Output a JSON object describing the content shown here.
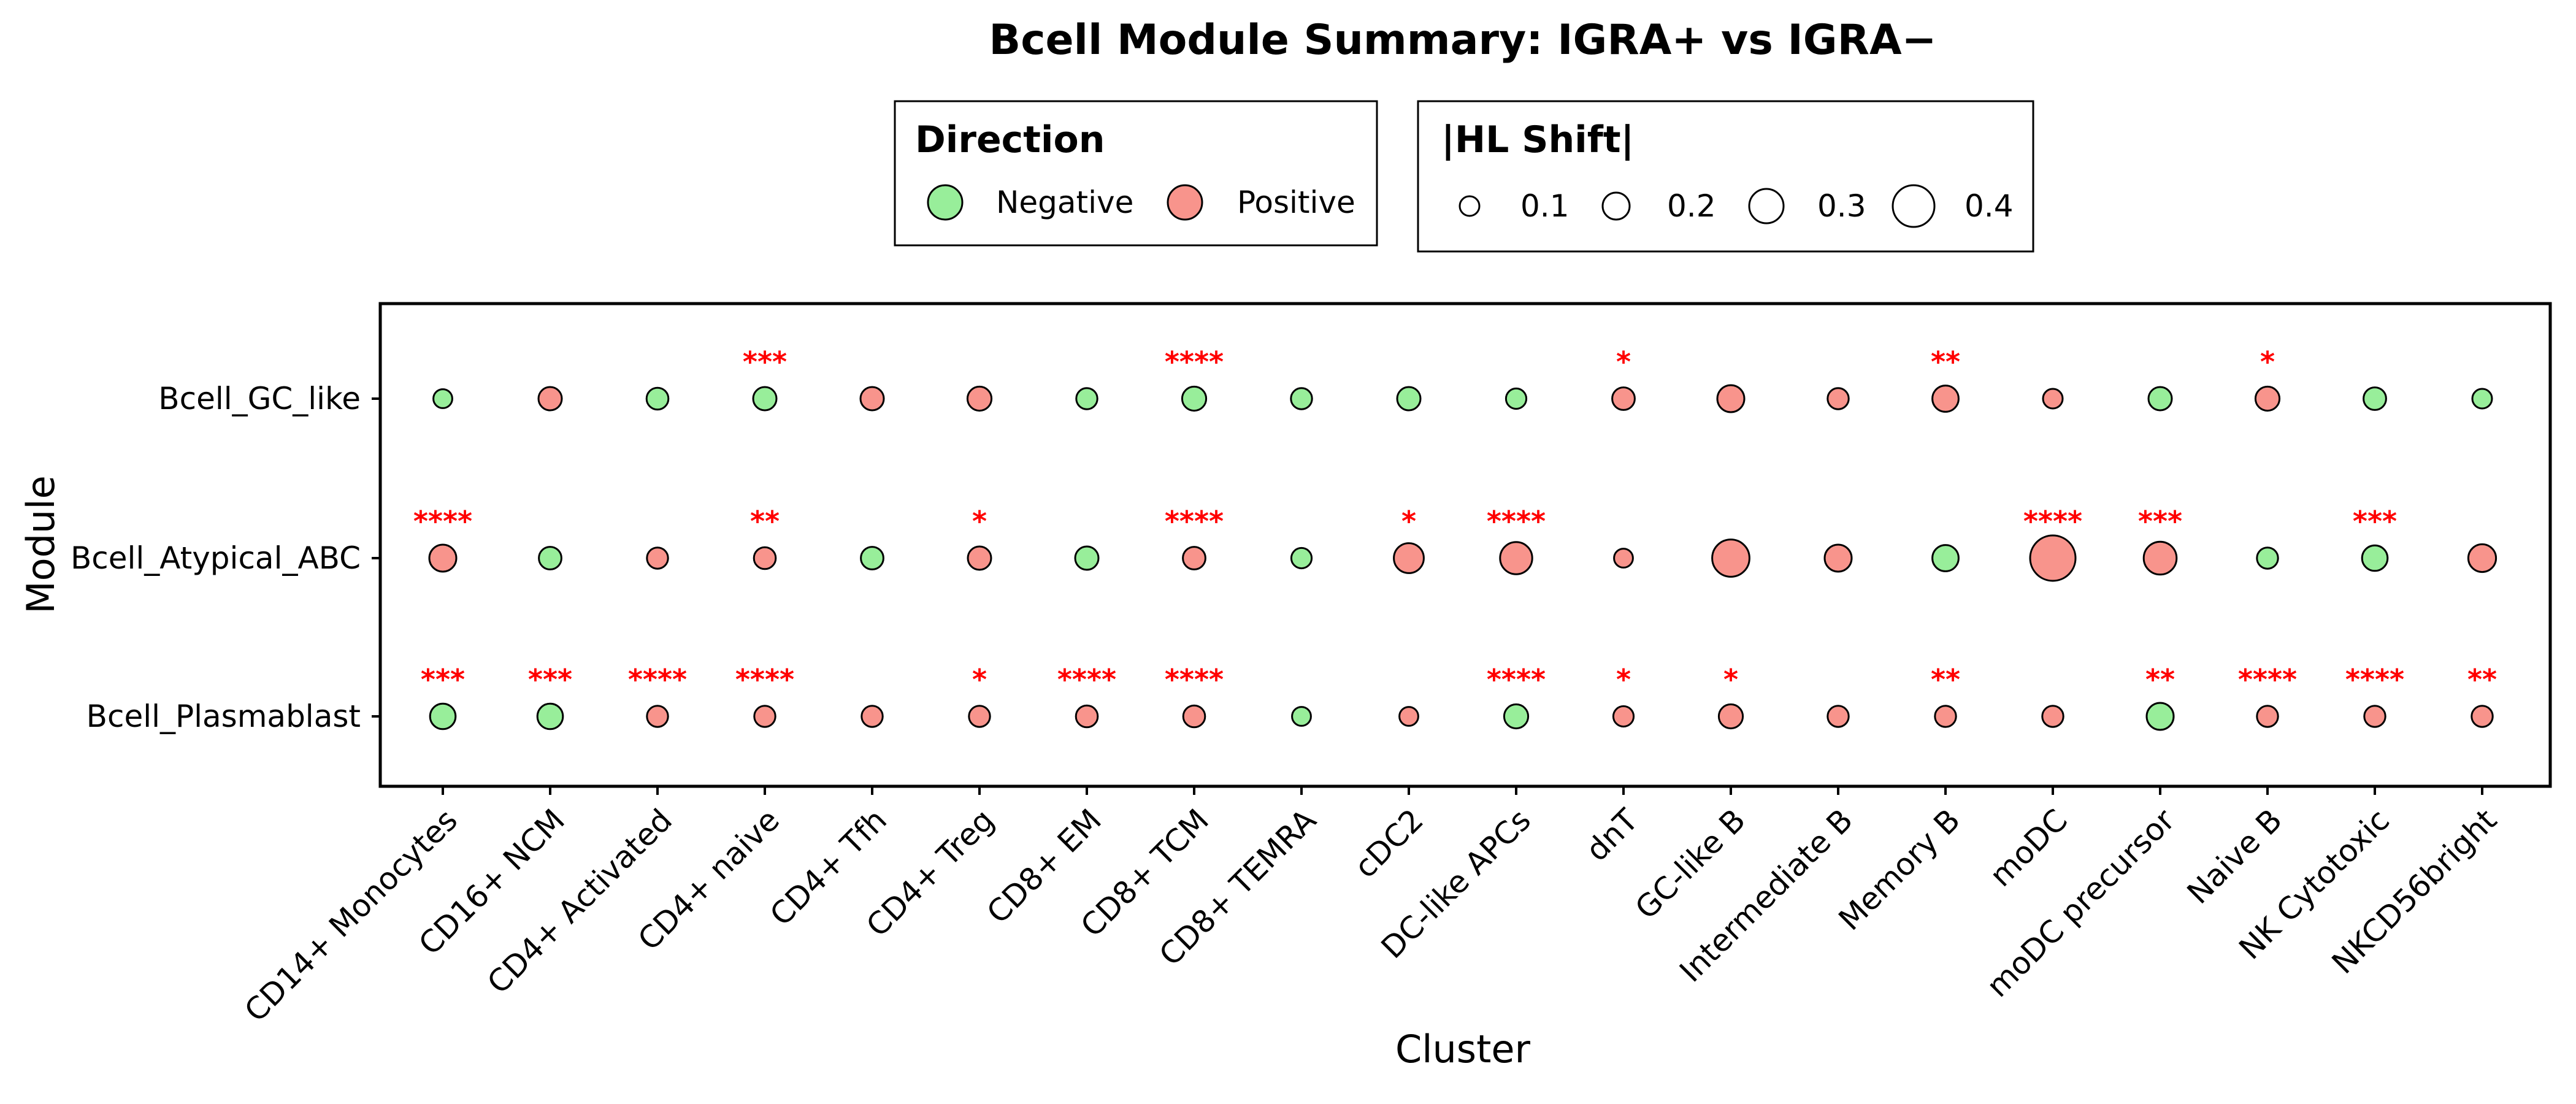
{
  "chart_data": {
    "type": "scatter",
    "title": "Bcell Module Summary: IGRA+ vs IGRA−",
    "xlabel": "Cluster",
    "ylabel": "Module",
    "categories": [
      "CD14+ Monocytes",
      "CD16+ NCM",
      "CD4+ Activated",
      "CD4+ naive",
      "CD4+ Tfh",
      "CD4+ Treg",
      "CD8+ EM",
      "CD8+ TCM",
      "CD8+ TEMRA",
      "cDC2",
      "DC-like APCs",
      "dnT",
      "GC-like B",
      "Intermediate B",
      "Memory B",
      "moDC",
      "moDC precursor",
      "Naive B",
      "NK Cytotoxic",
      "NKCD56bright"
    ],
    "modules": [
      "Bcell_GC_like",
      "Bcell_Atypical_ABC",
      "Bcell_Plasmablast"
    ],
    "grid": false,
    "legend_position": "top",
    "colors": {
      "Negative": "#98ee9a",
      "Positive": "#f8948c",
      "significance": "#ff0000"
    },
    "legend": {
      "direction_title": "Direction",
      "direction_items": [
        "Negative",
        "Positive"
      ],
      "size_title": "|HL Shift|",
      "size_breaks": [
        0.1,
        0.2,
        0.3,
        0.4
      ],
      "size_labels": [
        "0.1",
        "0.2",
        "0.3",
        "0.4"
      ]
    },
    "series": [
      {
        "module": "Bcell_GC_like",
        "direction": [
          "Negative",
          "Positive",
          "Negative",
          "Negative",
          "Positive",
          "Positive",
          "Negative",
          "Negative",
          "Negative",
          "Negative",
          "Negative",
          "Positive",
          "Positive",
          "Positive",
          "Positive",
          "Positive",
          "Negative",
          "Positive",
          "Negative",
          "Negative"
        ],
        "hl_shift": [
          0.09,
          0.15,
          0.13,
          0.15,
          0.15,
          0.16,
          0.12,
          0.16,
          0.12,
          0.15,
          0.11,
          0.14,
          0.2,
          0.12,
          0.19,
          0.1,
          0.15,
          0.16,
          0.14,
          0.1
        ],
        "significance": [
          "",
          "",
          "",
          "***",
          "",
          "",
          "",
          "****",
          "",
          "",
          "",
          "*",
          "",
          "",
          "**",
          "",
          "",
          "*",
          "",
          ""
        ]
      },
      {
        "module": "Bcell_Atypical_ABC",
        "direction": [
          "Positive",
          "Negative",
          "Positive",
          "Positive",
          "Negative",
          "Positive",
          "Negative",
          "Positive",
          "Negative",
          "Positive",
          "Positive",
          "Positive",
          "Positive",
          "Positive",
          "Negative",
          "Positive",
          "Positive",
          "Negative",
          "Negative",
          "Positive"
        ],
        "hl_shift": [
          0.2,
          0.14,
          0.12,
          0.13,
          0.14,
          0.15,
          0.15,
          0.14,
          0.11,
          0.24,
          0.27,
          0.09,
          0.34,
          0.2,
          0.19,
          0.45,
          0.28,
          0.12,
          0.18,
          0.21
        ],
        "significance": [
          "****",
          "",
          "",
          "**",
          "",
          "*",
          "",
          "****",
          "",
          "*",
          "****",
          "",
          "",
          "",
          "",
          "****",
          "***",
          "",
          "***",
          ""
        ]
      },
      {
        "module": "Bcell_Plasmablast",
        "direction": [
          "Negative",
          "Negative",
          "Positive",
          "Positive",
          "Positive",
          "Positive",
          "Positive",
          "Positive",
          "Negative",
          "Positive",
          "Negative",
          "Positive",
          "Positive",
          "Positive",
          "Positive",
          "Positive",
          "Negative",
          "Positive",
          "Positive",
          "Positive"
        ],
        "hl_shift": [
          0.18,
          0.18,
          0.12,
          0.12,
          0.12,
          0.12,
          0.13,
          0.13,
          0.09,
          0.09,
          0.16,
          0.11,
          0.16,
          0.12,
          0.12,
          0.12,
          0.2,
          0.12,
          0.12,
          0.12
        ],
        "significance": [
          "***",
          "***",
          "****",
          "****",
          "",
          "*",
          "****",
          "****",
          "",
          "",
          "****",
          "*",
          "*",
          "",
          "**",
          "",
          "**",
          "****",
          "****",
          "**"
        ]
      }
    ]
  }
}
